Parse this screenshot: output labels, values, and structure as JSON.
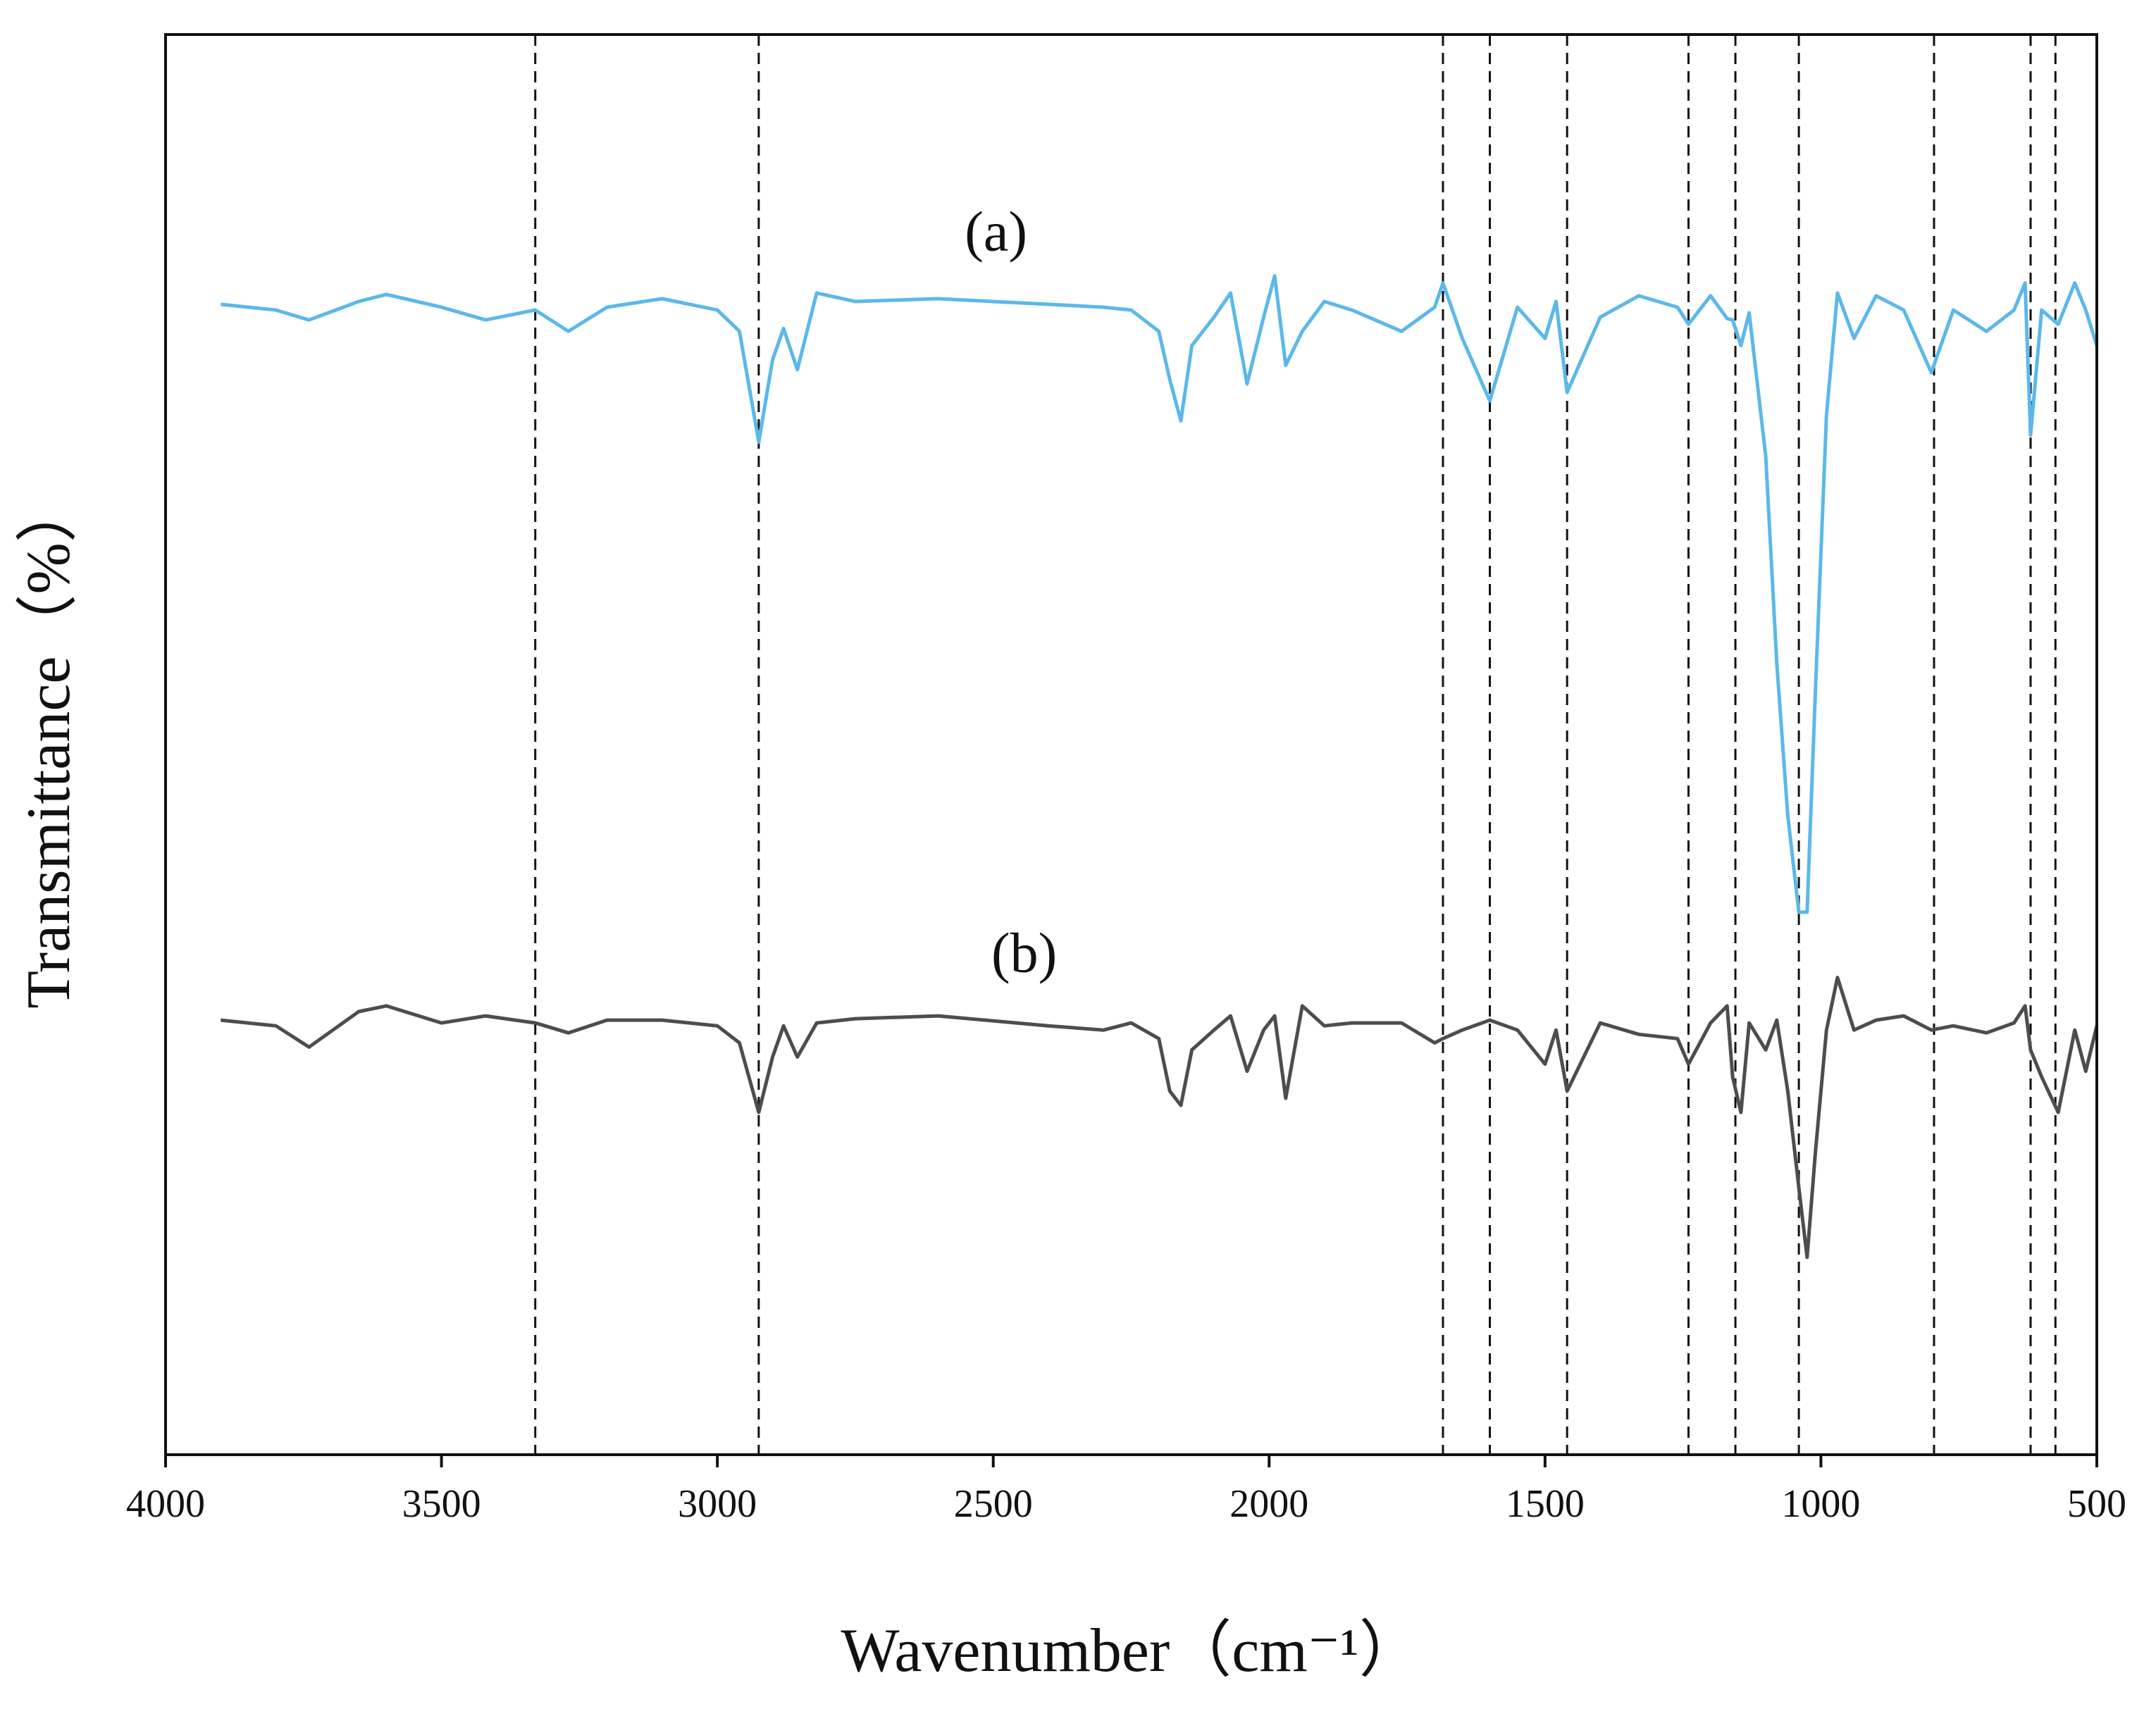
{
  "chart_data": {
    "type": "line",
    "x_label": "Wavenumber（cm⁻¹）",
    "y_label": "Transmittance（%）",
    "xlim": [
      4000,
      500
    ],
    "xticks": [
      4000,
      3500,
      3000,
      2500,
      2000,
      1500,
      1000,
      500
    ],
    "ylim": [
      0,
      100
    ],
    "reference_lines": [
      3330,
      2925,
      1685,
      1600,
      1460,
      1240,
      1155,
      1040,
      795,
      620,
      575
    ],
    "x": [
      3900,
      3800,
      3740,
      3650,
      3600,
      3500,
      3420,
      3330,
      3270,
      3200,
      3100,
      3000,
      2960,
      2925,
      2900,
      2880,
      2855,
      2820,
      2750,
      2600,
      2400,
      2300,
      2250,
      2200,
      2180,
      2160,
      2140,
      2100,
      2070,
      2040,
      2010,
      1990,
      1970,
      1940,
      1900,
      1850,
      1760,
      1700,
      1685,
      1650,
      1600,
      1550,
      1500,
      1480,
      1460,
      1400,
      1330,
      1260,
      1240,
      1200,
      1170,
      1160,
      1145,
      1130,
      1100,
      1080,
      1060,
      1040,
      1025,
      1010,
      990,
      970,
      940,
      900,
      850,
      800,
      760,
      700,
      650,
      630,
      620,
      600,
      570,
      540,
      520,
      500
    ],
    "series": [
      {
        "name": "(a)",
        "color": "#5bb8ea",
        "values": [
          81.0,
          80.6,
          79.9,
          81.2,
          81.7,
          80.8,
          79.9,
          80.6,
          79.1,
          80.8,
          81.4,
          80.6,
          79.1,
          71.3,
          77.1,
          79.3,
          76.4,
          81.8,
          81.2,
          81.4,
          81.0,
          80.8,
          80.6,
          79.1,
          75.7,
          72.8,
          78.1,
          80.1,
          81.8,
          75.4,
          80.1,
          83.0,
          76.7,
          79.1,
          81.2,
          80.6,
          79.1,
          80.8,
          82.5,
          78.6,
          74.2,
          80.8,
          78.6,
          81.2,
          74.8,
          80.1,
          81.6,
          80.8,
          79.6,
          81.6,
          80.0,
          79.9,
          78.1,
          80.4,
          70.3,
          55.7,
          45.0,
          38.2,
          38.2,
          53.8,
          73.2,
          81.8,
          78.6,
          81.6,
          80.6,
          76.2,
          80.6,
          79.1,
          80.6,
          82.5,
          71.8,
          80.6,
          79.6,
          82.5,
          80.6,
          78.1
        ]
      },
      {
        "name": "(b)",
        "color": "#4d4d4d",
        "values": [
          30.6,
          30.2,
          28.7,
          31.2,
          31.6,
          30.4,
          30.9,
          30.4,
          29.7,
          30.6,
          30.6,
          30.2,
          29.0,
          24.1,
          28.0,
          30.2,
          28.0,
          30.4,
          30.7,
          30.9,
          30.2,
          29.9,
          30.4,
          29.3,
          25.6,
          24.6,
          28.5,
          29.9,
          30.9,
          27.0,
          29.9,
          30.9,
          25.1,
          31.6,
          30.2,
          30.4,
          30.4,
          29.0,
          29.3,
          29.9,
          30.6,
          29.9,
          27.5,
          29.9,
          25.6,
          30.4,
          29.6,
          29.3,
          27.5,
          30.4,
          31.6,
          26.6,
          24.1,
          30.4,
          28.5,
          30.6,
          25.6,
          18.8,
          13.9,
          21.3,
          29.9,
          33.6,
          29.9,
          30.6,
          30.9,
          29.9,
          30.2,
          29.7,
          30.4,
          31.6,
          28.5,
          26.6,
          24.1,
          29.9,
          27.0,
          30.2
        ]
      }
    ]
  }
}
